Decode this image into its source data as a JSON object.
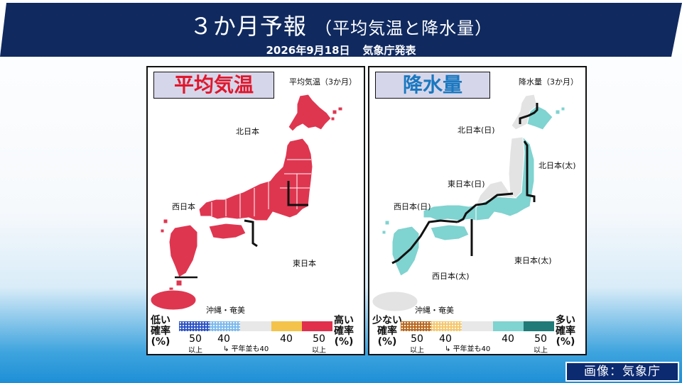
{
  "header": {
    "title": "３か月予報",
    "subtitle": "（平均気温と降水量）",
    "date": "2026年9月18日",
    "issuer": "気象庁発表"
  },
  "temperature": {
    "title": "平均気温",
    "corner_label": "平均気温（3か月）",
    "regions": {
      "north": "北日本",
      "west": "西日本",
      "east": "東日本",
      "okinawa": "沖縄・奄美"
    },
    "forecast": {
      "北日本": "high_50_plus",
      "東日本": "high_50_plus",
      "西日本": "high_50_plus",
      "沖縄・奄美": "high_50_plus"
    },
    "legend": {
      "left_label": [
        "低い",
        "確率",
        "(%)"
      ],
      "right_label": [
        "高い",
        "確率",
        "(%)"
      ],
      "numbers": [
        "50",
        "40",
        "40",
        "50"
      ],
      "small_left": "以上",
      "small_right": "以上",
      "note": "平年並も40",
      "colors": [
        "#2a4fc4",
        "#7ab8ec",
        "#e8e8e8",
        "#f3c34a",
        "#e0304c"
      ]
    },
    "colors": {
      "fill": "#df3650",
      "title": "#e0172c"
    }
  },
  "precipitation": {
    "title": "降水量",
    "corner_label": "降水量（3か月）",
    "regions": {
      "north_sea": "北日本(日)",
      "north_pacific": "北日本(太)",
      "east_sea": "東日本(日)",
      "west_sea": "西日本(日)",
      "east_pacific": "東日本(太)",
      "west_pacific": "西日本(太)",
      "okinawa": "沖縄・奄美"
    },
    "forecast": {
      "北日本(日)": "normal",
      "東日本(日)": "normal",
      "北日本(太)": "high_40",
      "東日本(太)": "high_40",
      "西日本(日)": "high_40",
      "西日本(太)": "high_40",
      "沖縄・奄美": "normal"
    },
    "legend": {
      "left_label": [
        "少ない",
        "確率",
        "(%)"
      ],
      "right_label": [
        "多い",
        "確率",
        "(%)"
      ],
      "numbers": [
        "50",
        "40",
        "40",
        "50"
      ],
      "small_left": "以上",
      "small_right": "以上",
      "note": "平年並も40",
      "colors": [
        "#b8651a",
        "#f4c66a",
        "#e8e8e8",
        "#7fd3d0",
        "#1f7a78"
      ]
    },
    "colors": {
      "high": "#7fd3d0",
      "normal": "#e3e3e3",
      "title": "#1a78c0"
    }
  },
  "credit": "画像：気象庁"
}
